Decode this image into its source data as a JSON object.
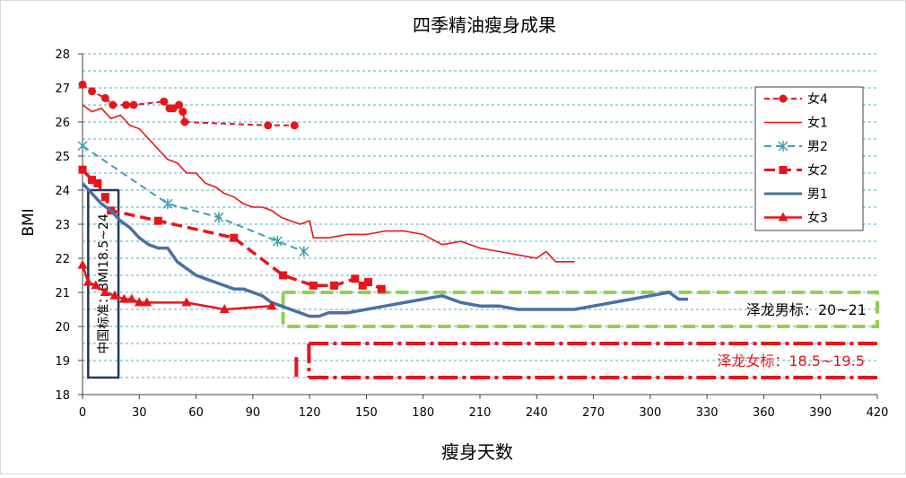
{
  "chart_data": {
    "type": "line",
    "title": "四季精油瘦身成果",
    "xlabel": "瘦身天数",
    "ylabel": "BMI",
    "xlim": [
      0,
      420
    ],
    "ylim": [
      18,
      28
    ],
    "x_ticks": [
      0,
      30,
      60,
      90,
      120,
      150,
      180,
      210,
      240,
      270,
      300,
      330,
      360,
      390,
      420
    ],
    "y_ticks": [
      18,
      19,
      20,
      21,
      22,
      23,
      24,
      25,
      26,
      27,
      28
    ],
    "grid": "horizontal dashed every 0.5 BMI",
    "legend_position": "right",
    "series": [
      {
        "name": "女4",
        "color": "#e8141b",
        "dash": "dashed",
        "marker": "circle",
        "x": [
          0,
          5,
          12,
          16,
          23,
          27,
          43,
          46,
          48,
          51,
          53,
          54,
          98,
          112
        ],
        "y": [
          27.1,
          26.9,
          26.7,
          26.5,
          26.5,
          26.5,
          26.6,
          26.4,
          26.4,
          26.5,
          26.3,
          26.0,
          25.9,
          25.9
        ]
      },
      {
        "name": "女1",
        "color": "#e8141b",
        "dash": "solid",
        "marker": "none",
        "x": [
          0,
          5,
          10,
          15,
          20,
          25,
          30,
          35,
          40,
          45,
          50,
          55,
          60,
          65,
          70,
          75,
          80,
          85,
          90,
          95,
          100,
          105,
          110,
          115,
          120,
          122,
          130,
          140,
          150,
          160,
          170,
          180,
          190,
          200,
          210,
          220,
          230,
          240,
          245,
          250,
          255,
          260
        ],
        "y": [
          26.5,
          26.3,
          26.4,
          26.1,
          26.2,
          25.9,
          25.8,
          25.5,
          25.2,
          24.9,
          24.8,
          24.5,
          24.5,
          24.2,
          24.1,
          23.9,
          23.8,
          23.6,
          23.5,
          23.5,
          23.4,
          23.2,
          23.1,
          23.0,
          23.1,
          22.6,
          22.6,
          22.7,
          22.7,
          22.8,
          22.8,
          22.7,
          22.4,
          22.5,
          22.3,
          22.2,
          22.1,
          22.0,
          22.2,
          21.9,
          21.9,
          21.9
        ]
      },
      {
        "name": "男2",
        "color": "#3f9fae",
        "dash": "dashed",
        "marker": "star",
        "x": [
          0,
          45,
          72,
          103,
          117
        ],
        "y": [
          25.3,
          23.6,
          23.2,
          22.5,
          22.2
        ]
      },
      {
        "name": "女2",
        "color": "#e8141b",
        "dash": "dashed",
        "marker": "square",
        "x": [
          0,
          5,
          8,
          12,
          15,
          40,
          80,
          106,
          122,
          133,
          144,
          148,
          151,
          158
        ],
        "y": [
          24.6,
          24.3,
          24.2,
          23.8,
          23.4,
          23.1,
          22.6,
          21.5,
          21.2,
          21.2,
          21.4,
          21.2,
          21.3,
          21.1
        ]
      },
      {
        "name": "男1",
        "color": "#4a6fa5",
        "dash": "solid",
        "marker": "none",
        "x": [
          0,
          5,
          10,
          15,
          20,
          25,
          30,
          35,
          40,
          45,
          50,
          55,
          60,
          65,
          70,
          75,
          80,
          85,
          90,
          95,
          100,
          105,
          110,
          115,
          120,
          125,
          130,
          140,
          150,
          160,
          170,
          180,
          190,
          200,
          210,
          220,
          230,
          240,
          250,
          260,
          270,
          280,
          290,
          300,
          310,
          315,
          320
        ],
        "y": [
          24.2,
          23.9,
          23.6,
          23.4,
          23.1,
          22.9,
          22.6,
          22.4,
          22.3,
          22.3,
          21.9,
          21.7,
          21.5,
          21.4,
          21.3,
          21.2,
          21.1,
          21.1,
          21.0,
          20.9,
          20.7,
          20.6,
          20.5,
          20.4,
          20.3,
          20.3,
          20.4,
          20.4,
          20.5,
          20.6,
          20.7,
          20.8,
          20.9,
          20.7,
          20.6,
          20.6,
          20.5,
          20.5,
          20.5,
          20.5,
          20.6,
          20.7,
          20.8,
          20.9,
          21.0,
          20.8,
          20.8
        ]
      },
      {
        "name": "女3",
        "color": "#e8141b",
        "dash": "solid",
        "marker": "triangle",
        "x": [
          0,
          3,
          7,
          12,
          17,
          22,
          26,
          30,
          34,
          55,
          75,
          100
        ],
        "y": [
          21.8,
          21.3,
          21.2,
          21.0,
          20.9,
          20.8,
          20.8,
          20.7,
          20.7,
          20.7,
          20.5,
          20.6
        ]
      }
    ],
    "annotations": [
      {
        "label": "中国标准：BMI18.5~24",
        "y_range": [
          18.5,
          24
        ],
        "x_range": [
          3,
          19
        ],
        "color": "#1f3a5f"
      },
      {
        "label": "泽龙男标：20~21",
        "y_range": [
          20,
          21
        ],
        "x_range": [
          106,
          420
        ],
        "color": "#92d050"
      },
      {
        "label": "泽龙女标：18.5~19.5",
        "y_range": [
          18.5,
          19.5
        ],
        "x_range": [
          113,
          420
        ],
        "color": "#e8141b"
      }
    ]
  }
}
